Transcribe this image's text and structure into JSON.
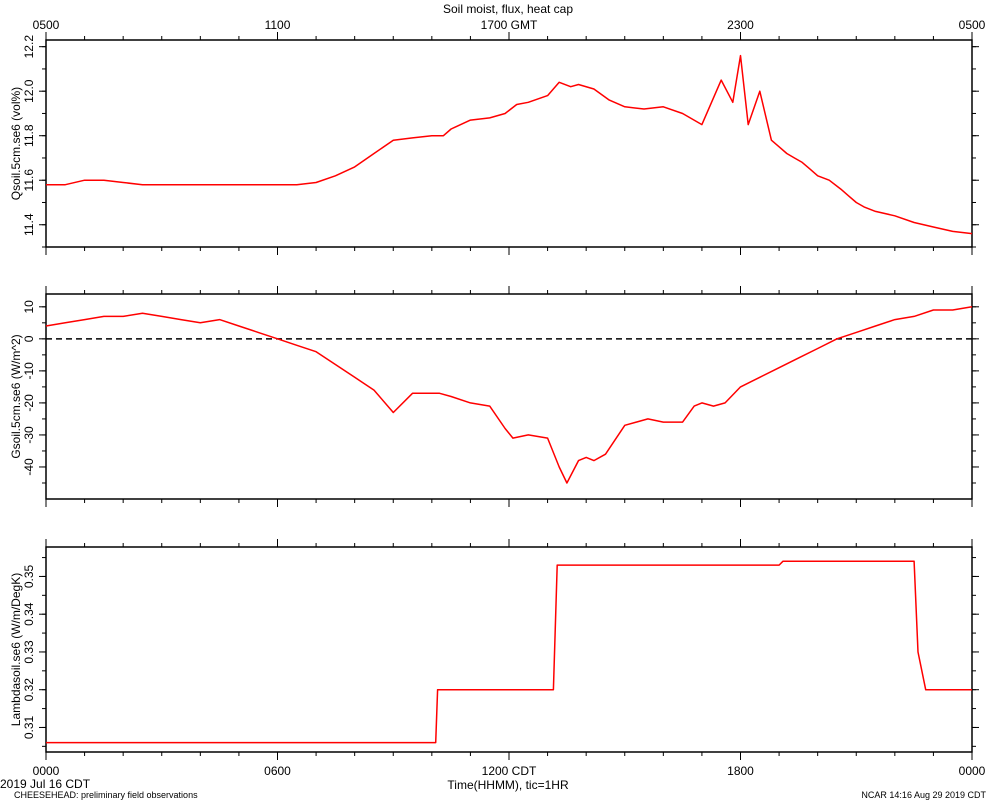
{
  "page": {
    "title": "Soil moist, flux, heat cap",
    "date_label": "2019 Jul 16 CDT",
    "footer_left": "CHEESEHEAD: preliminary field observations",
    "footer_right": "NCAR 14:16 Aug 29 2019 CDT"
  },
  "axes": {
    "top_tick_labels": [
      "0500",
      "1100",
      "1700 GMT",
      "2300",
      "0500"
    ],
    "bottom_tick_labels": [
      "0000",
      "0600",
      "1200 CDT",
      "1800",
      "0000"
    ],
    "bottom_axis_title": "Time(HHMM), tic=1HR"
  },
  "colors": {
    "series": "#ff0000",
    "axis": "#000000",
    "zero_line": "#000000"
  },
  "chart_data": [
    {
      "type": "line",
      "ylabel": "Qsoil.5cm.se6 (vol%)",
      "ylim": [
        11.3,
        12.23
      ],
      "yticks": [
        11.4,
        11.6,
        11.8,
        12.0,
        12.2
      ],
      "ytick_labels": [
        "11.4",
        "11.6",
        "11.8",
        "12.0",
        "12.2"
      ],
      "x_hours_cdt": [
        0,
        0.5,
        1,
        1.5,
        2,
        2.5,
        3,
        3.5,
        4,
        4.5,
        5,
        5.5,
        6,
        6.5,
        7,
        7.5,
        8,
        8.5,
        9,
        9.5,
        10,
        10.3,
        10.5,
        11,
        11.5,
        11.9,
        12.2,
        12.5,
        13,
        13.3,
        13.6,
        13.8,
        14.2,
        14.6,
        15,
        15.5,
        16,
        16.5,
        17,
        17.5,
        17.8,
        18.0,
        18.2,
        18.5,
        18.8,
        19.0,
        19.2,
        19.4,
        19.6,
        19.8,
        20.0,
        20.3,
        20.6,
        20.8,
        21.0,
        21.2,
        21.5,
        22.0,
        22.5,
        23.0,
        23.5,
        24.0
      ],
      "series": [
        {
          "values": [
            11.58,
            11.58,
            11.6,
            11.6,
            11.59,
            11.58,
            11.58,
            11.58,
            11.58,
            11.58,
            11.58,
            11.58,
            11.58,
            11.58,
            11.59,
            11.62,
            11.66,
            11.72,
            11.78,
            11.79,
            11.8,
            11.8,
            11.83,
            11.87,
            11.88,
            11.9,
            11.94,
            11.95,
            11.98,
            12.04,
            12.02,
            12.03,
            12.01,
            11.96,
            11.93,
            11.92,
            11.93,
            11.9,
            11.85,
            12.05,
            11.95,
            12.16,
            11.85,
            12.0,
            11.78,
            11.75,
            11.72,
            11.7,
            11.68,
            11.65,
            11.62,
            11.6,
            11.56,
            11.53,
            11.5,
            11.48,
            11.46,
            11.44,
            11.41,
            11.39,
            11.37,
            11.36
          ]
        }
      ]
    },
    {
      "type": "line",
      "ylabel": "Gsoil.5cm.se6 (W/m^2)",
      "ylim": [
        -50,
        14
      ],
      "yticks": [
        -40,
        -30,
        -20,
        -10,
        0,
        10
      ],
      "ytick_labels": [
        "-40",
        "-30",
        "-20",
        "-10",
        "0",
        "10"
      ],
      "reference_line": 0,
      "x_hours_cdt": [
        0,
        0.5,
        1,
        1.5,
        2,
        2.5,
        3,
        3.5,
        4,
        4.5,
        5,
        5.5,
        6,
        6.5,
        7,
        7.5,
        8,
        8.5,
        9,
        9.5,
        10,
        10.2,
        10.5,
        11,
        11.5,
        11.9,
        12.1,
        12.5,
        13,
        13.3,
        13.5,
        13.8,
        14.0,
        14.2,
        14.5,
        15,
        15.3,
        15.6,
        16,
        16.5,
        16.8,
        17.0,
        17.3,
        17.6,
        18.0,
        18.5,
        19.0,
        19.5,
        20.0,
        20.5,
        21.0,
        21.5,
        22.0,
        22.5,
        23.0,
        23.5,
        24.0
      ],
      "series": [
        {
          "values": [
            4,
            5,
            6,
            7,
            7,
            8,
            7,
            6,
            5,
            6,
            4,
            2,
            0,
            -2,
            -4,
            -8,
            -12,
            -16,
            -23,
            -17,
            -17,
            -17,
            -18,
            -20,
            -21,
            -28,
            -31,
            -30,
            -31,
            -40,
            -45,
            -38,
            -37,
            -38,
            -36,
            -27,
            -26,
            -25,
            -26,
            -26,
            -21,
            -20,
            -21,
            -20,
            -15,
            -12,
            -9,
            -6,
            -3,
            0,
            2,
            4,
            6,
            7,
            9,
            9,
            10
          ]
        }
      ]
    },
    {
      "type": "line",
      "ylabel": "Lambdasoil.se6 (W/m/DegK)",
      "ylim": [
        0.3035,
        0.3578
      ],
      "yticks": [
        0.31,
        0.32,
        0.33,
        0.34,
        0.35
      ],
      "ytick_labels": [
        "0.31",
        "0.32",
        "0.33",
        "0.34",
        "0.35"
      ],
      "x_hours_cdt": [
        0,
        10.1,
        10.15,
        13.15,
        13.25,
        19.0,
        19.1,
        22.5,
        22.6,
        22.8,
        24.0
      ],
      "series": [
        {
          "values": [
            0.306,
            0.306,
            0.32,
            0.32,
            0.353,
            0.353,
            0.354,
            0.354,
            0.33,
            0.32,
            0.32
          ]
        }
      ]
    }
  ]
}
